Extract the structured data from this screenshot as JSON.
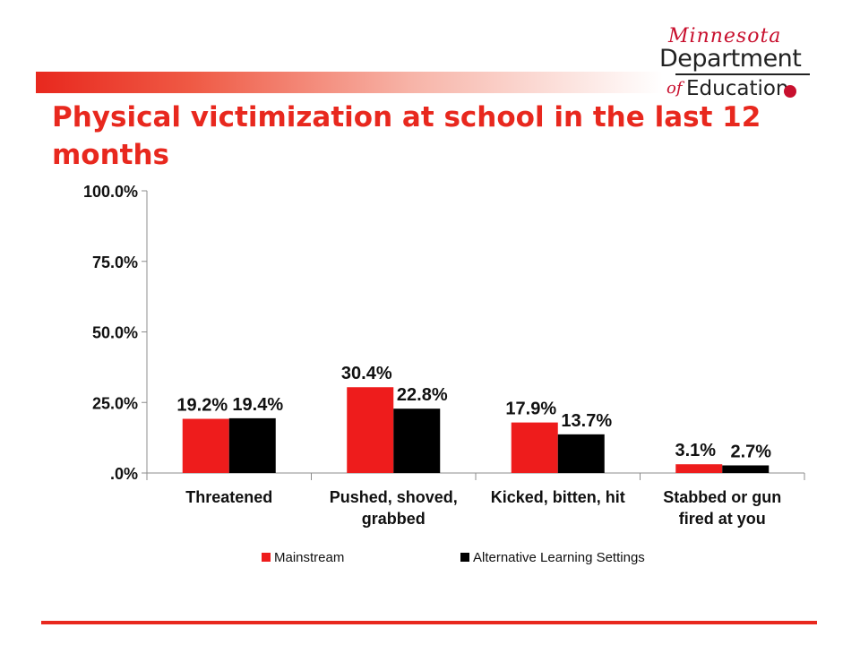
{
  "logo": {
    "script": "Minnesota",
    "line1": "Department",
    "of": "of",
    "line2": "Education"
  },
  "title": "Physical victimization at school in the last 12 months",
  "colors": {
    "accent": "#e8281e",
    "mainstream": "#ee1c1c",
    "alternative": "#000000"
  },
  "chart_data": {
    "type": "bar",
    "categories": [
      [
        "Threatened"
      ],
      [
        "Pushed, shoved,",
        "grabbed"
      ],
      [
        "Kicked, bitten, hit"
      ],
      [
        "Stabbed or gun",
        "fired at you"
      ]
    ],
    "series": [
      {
        "name": "Mainstream",
        "values": [
          19.2,
          30.4,
          17.9,
          3.1
        ],
        "labels": [
          "19.2%",
          "30.4%",
          "17.9%",
          "3.1%"
        ],
        "color": "#ee1c1c"
      },
      {
        "name": "Alternative Learning Settings",
        "values": [
          19.4,
          22.8,
          13.7,
          2.7
        ],
        "labels": [
          "19.4%",
          "22.8%",
          "13.7%",
          "2.7%"
        ],
        "color": "#000000"
      }
    ],
    "yticks": [
      0,
      25,
      50,
      75,
      100
    ],
    "ytick_labels": [
      ".0%",
      "25.0%",
      "50.0%",
      "75.0%",
      "100.0%"
    ],
    "ylim": [
      0,
      100
    ],
    "grid": false,
    "legend": "bottom"
  }
}
